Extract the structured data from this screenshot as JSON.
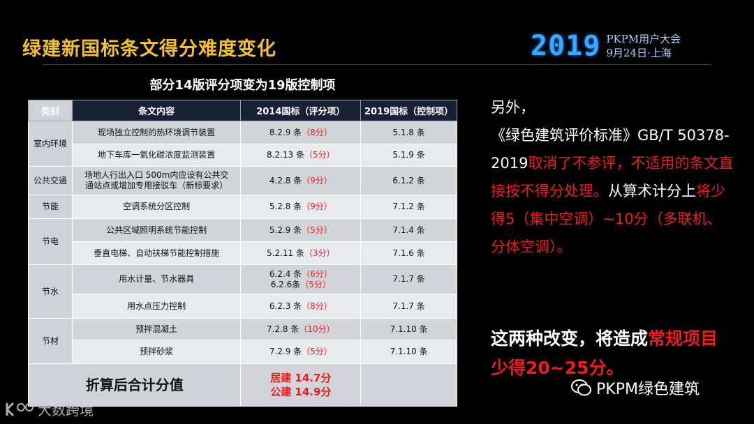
{
  "header": {
    "title": "绿建新国标条文得分难度变化",
    "logo_year": "2019",
    "logo_line1": "PKPM用户大会",
    "logo_line2": "9月24日·上海"
  },
  "table": {
    "title": "部分14版评分项变为19版控制项",
    "columns": [
      "类别",
      "条文内容",
      "2014国标（评分项）",
      "2019国标（控制项）"
    ],
    "categories": [
      "室内环境",
      "公共交通",
      "节能",
      "节电",
      "节水",
      "节材"
    ],
    "rows": [
      {
        "item": "现场独立控制的热环境调节装置",
        "old_clause": "8.2.9 条",
        "old_score": "（8分）",
        "new_clause": "5.1.8 条"
      },
      {
        "item": "地下车库一氧化碳浓度监测装置",
        "old_clause": "8.2.13 条",
        "old_score": "（5分）",
        "new_clause": "5.1.9 条"
      },
      {
        "item_line1": "场地人行出入口 500m内应设有公共交",
        "item_line2": "通站点或增加专用接驳车（新标要求）",
        "old_clause": "4.2.8 条",
        "old_score": "（9分）",
        "new_clause": "6.1.2 条"
      },
      {
        "item": "空调系统分区控制",
        "old_clause": "5.2.8 条",
        "old_score": "（9分）",
        "new_clause": "7.1.2 条"
      },
      {
        "item": "公共区域照明系统节能控制",
        "old_clause": "5.2.9 条",
        "old_score": "（5分）",
        "new_clause": "7.1.4 条"
      },
      {
        "item": "垂直电梯、自动扶梯节能控制措施",
        "old_clause": "5.2.11 条",
        "old_score": "（3分）",
        "new_clause": "7.1.6 条"
      },
      {
        "item": "用水计量、节水器具",
        "old_clause": "6.2.4 条",
        "old_score": "（6分）",
        "old_clause2": "6.2.6条",
        "old_score2": "（5分）",
        "new_clause": "7.1.7 条"
      },
      {
        "item": "用水点压力控制",
        "old_clause": "6.2.3 条",
        "old_score": "（8分）",
        "new_clause": "7.1.7 条"
      },
      {
        "item": "预拌混凝土",
        "old_clause": "7.2.8 条",
        "old_score": "（10分）",
        "new_clause": "7.1.10 条"
      },
      {
        "item": "预拌砂浆",
        "old_clause": "7.2.9 条",
        "old_score": "（5分）",
        "new_clause": "7.1.10 条"
      }
    ],
    "total": {
      "label": "折算后合计分值",
      "line1": "居建  14.7分",
      "line2": "公建  14.9分"
    }
  },
  "side_text": {
    "p1": "另外，",
    "p2": "《绿色建筑评价标准》GB/T 50378-2019",
    "p3_red": "取消了不参评，不适用的条文直接按不得分处理。",
    "p4": "从算术计分上",
    "p5_red": "将少得5（集中空调）~10分（多联机、分体空调）。"
  },
  "conclusion": {
    "text": "这两种改变，将造成",
    "red": "常规项目少得20~25分。"
  },
  "footer": {
    "wechat_name": "PKPM绿色建筑",
    "watermark": "大数跨境"
  },
  "colors": {
    "title": "#f2c12e",
    "accent_red": "#ee1c1c",
    "header_bg": "#172035",
    "logo_blue": "#3aa8ff"
  }
}
